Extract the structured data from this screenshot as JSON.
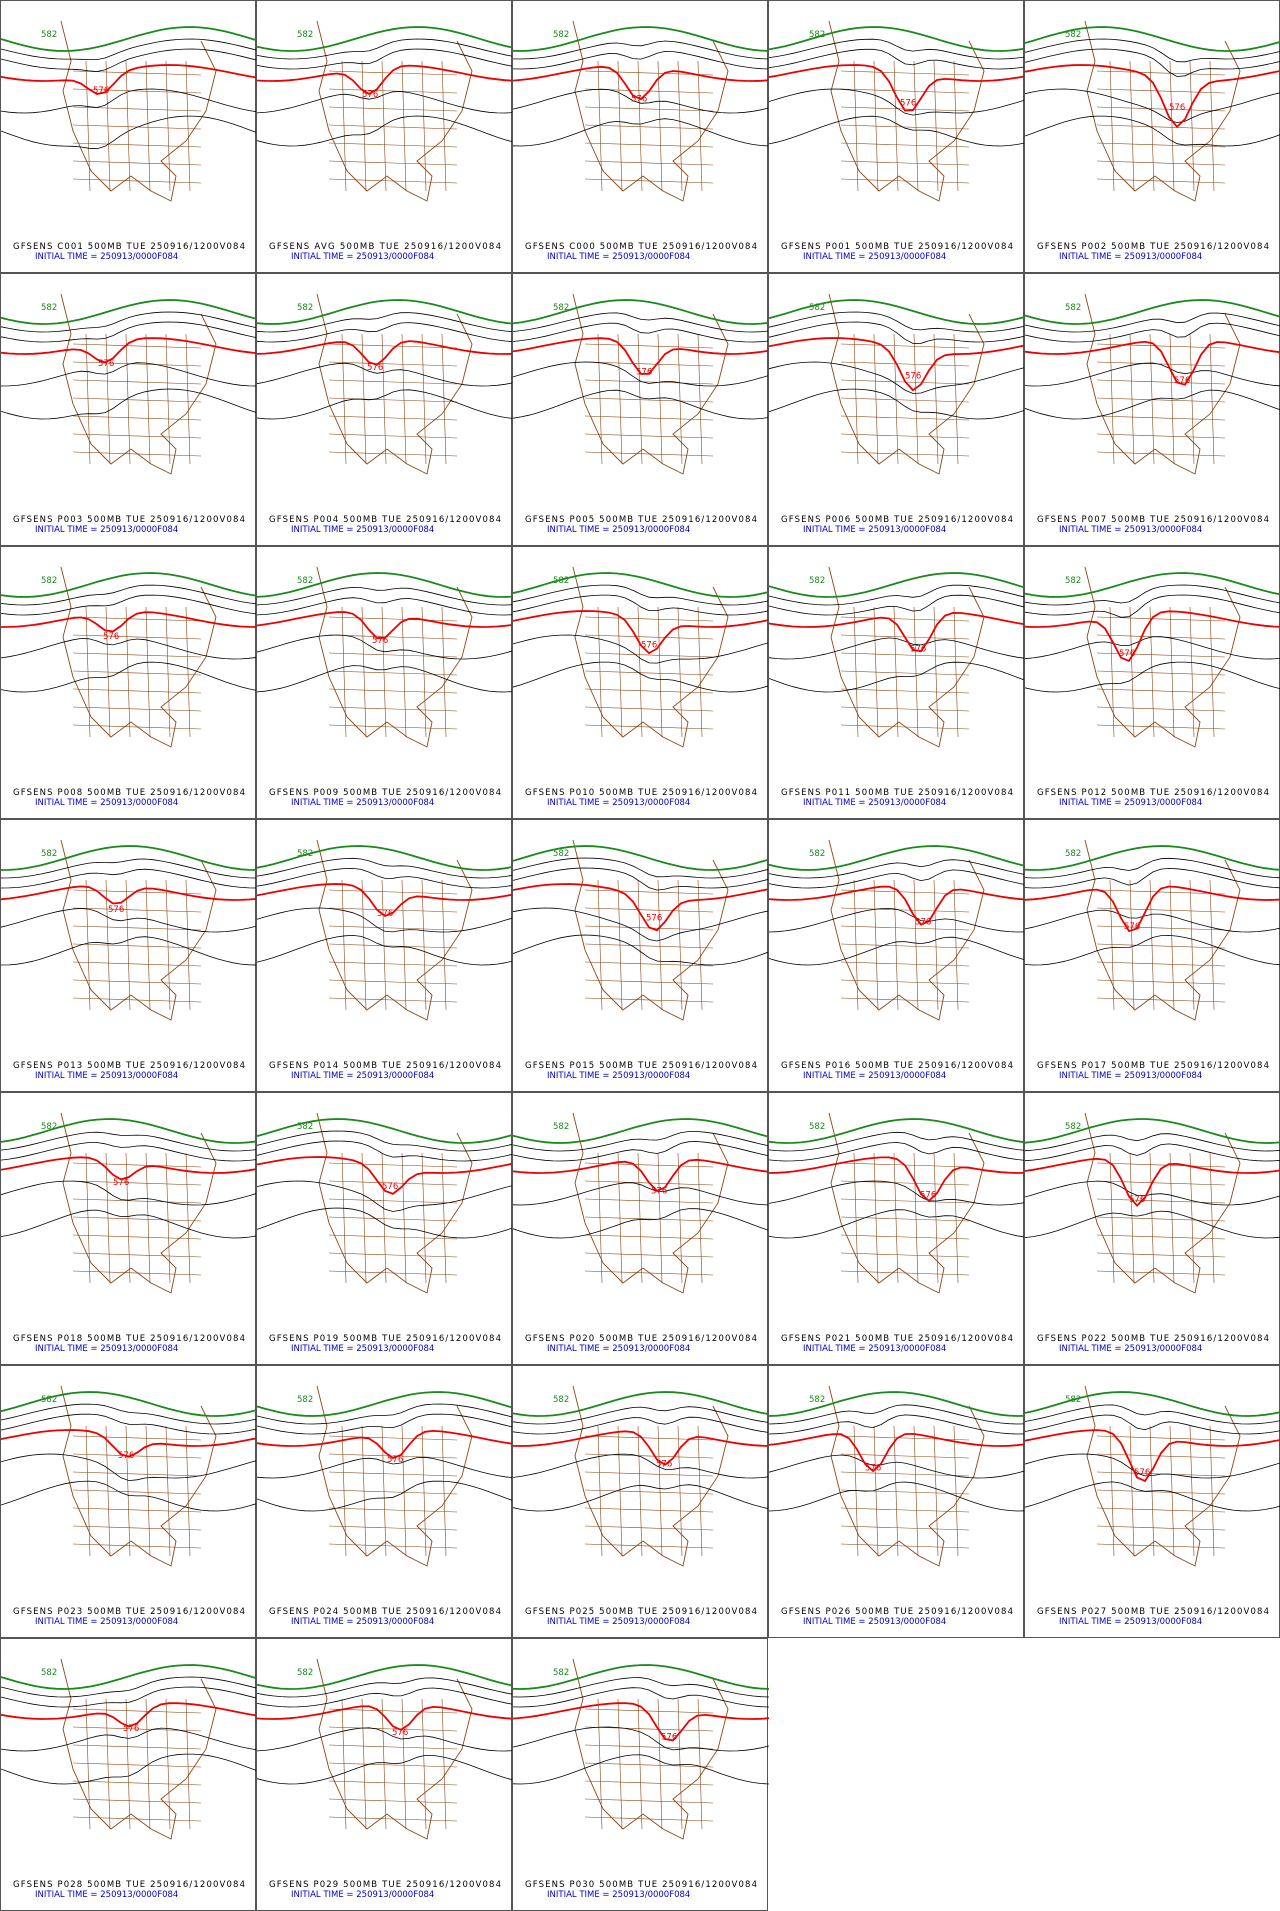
{
  "contour_labels": {
    "green": "582",
    "red": "576"
  },
  "panels": [
    {
      "title": "GFSENS C001 500MB TUE 250916/1200V084",
      "initial": "INITIAL TIME = 250913/0000F084"
    },
    {
      "title": "GFSENS AVG 500MB TUE 250916/1200V084",
      "initial": "INITIAL TIME = 250913/0000F084"
    },
    {
      "title": "GFSENS C000 500MB TUE 250916/1200V084",
      "initial": "INITIAL TIME = 250913/0000F084"
    },
    {
      "title": "GFSENS P001 500MB TUE 250916/1200V084",
      "initial": "INITIAL TIME = 250913/0000F084"
    },
    {
      "title": "GFSENS P002 500MB TUE 250916/1200V084",
      "initial": "INITIAL TIME = 250913/0000F084"
    },
    {
      "title": "GFSENS P003 500MB TUE 250916/1200V084",
      "initial": "INITIAL TIME = 250913/0000F084"
    },
    {
      "title": "GFSENS P004 500MB TUE 250916/1200V084",
      "initial": "INITIAL TIME = 250913/0000F084"
    },
    {
      "title": "GFSENS P005 500MB TUE 250916/1200V084",
      "initial": "INITIAL TIME = 250913/0000F084"
    },
    {
      "title": "GFSENS P006 500MB TUE 250916/1200V084",
      "initial": "INITIAL TIME = 250913/0000F084"
    },
    {
      "title": "GFSENS P007 500MB TUE 250916/1200V084",
      "initial": "INITIAL TIME = 250913/0000F084"
    },
    {
      "title": "GFSENS P008 500MB TUE 250916/1200V084",
      "initial": "INITIAL TIME = 250913/0000F084"
    },
    {
      "title": "GFSENS P009 500MB TUE 250916/1200V084",
      "initial": "INITIAL TIME = 250913/0000F084"
    },
    {
      "title": "GFSENS P010 500MB TUE 250916/1200V084",
      "initial": "INITIAL TIME = 250913/0000F084"
    },
    {
      "title": "GFSENS P011 500MB TUE 250916/1200V084",
      "initial": "INITIAL TIME = 250913/0000F084"
    },
    {
      "title": "GFSENS P012 500MB TUE 250916/1200V084",
      "initial": "INITIAL TIME = 250913/0000F084"
    },
    {
      "title": "GFSENS P013 500MB TUE 250916/1200V084",
      "initial": "INITIAL TIME = 250913/0000F084"
    },
    {
      "title": "GFSENS P014 500MB TUE 250916/1200V084",
      "initial": "INITIAL TIME = 250913/0000F084"
    },
    {
      "title": "GFSENS P015 500MB TUE 250916/1200V084",
      "initial": "INITIAL TIME = 250913/0000F084"
    },
    {
      "title": "GFSENS P016 500MB TUE 250916/1200V084",
      "initial": "INITIAL TIME = 250913/0000F084"
    },
    {
      "title": "GFSENS P017 500MB TUE 250916/1200V084",
      "initial": "INITIAL TIME = 250913/0000F084"
    },
    {
      "title": "GFSENS P018 500MB TUE 250916/1200V084",
      "initial": "INITIAL TIME = 250913/0000F084"
    },
    {
      "title": "GFSENS P019 500MB TUE 250916/1200V084",
      "initial": "INITIAL TIME = 250913/0000F084"
    },
    {
      "title": "GFSENS P020 500MB TUE 250916/1200V084",
      "initial": "INITIAL TIME = 250913/0000F084"
    },
    {
      "title": "GFSENS P021 500MB TUE 250916/1200V084",
      "initial": "INITIAL TIME = 250913/0000F084"
    },
    {
      "title": "GFSENS P022 500MB TUE 250916/1200V084",
      "initial": "INITIAL TIME = 250913/0000F084"
    },
    {
      "title": "GFSENS P023 500MB TUE 250916/1200V084",
      "initial": "INITIAL TIME = 250913/0000F084"
    },
    {
      "title": "GFSENS P024 500MB TUE 250916/1200V084",
      "initial": "INITIAL TIME = 250913/0000F084"
    },
    {
      "title": "GFSENS P025 500MB TUE 250916/1200V084",
      "initial": "INITIAL TIME = 250913/0000F084"
    },
    {
      "title": "GFSENS P026 500MB TUE 250916/1200V084",
      "initial": "INITIAL TIME = 250913/0000F084"
    },
    {
      "title": "GFSENS P027 500MB TUE 250916/1200V084",
      "initial": "INITIAL TIME = 250913/0000F084"
    },
    {
      "title": "GFSENS P028 500MB TUE 250916/1200V084",
      "initial": "INITIAL TIME = 250913/0000F084"
    },
    {
      "title": "GFSENS P029 500MB TUE 250916/1200V084",
      "initial": "INITIAL TIME = 250913/0000F084"
    },
    {
      "title": "GFSENS P030 500MB TUE 250916/1200V084",
      "initial": "INITIAL TIME = 250913/0000F084"
    }
  ]
}
